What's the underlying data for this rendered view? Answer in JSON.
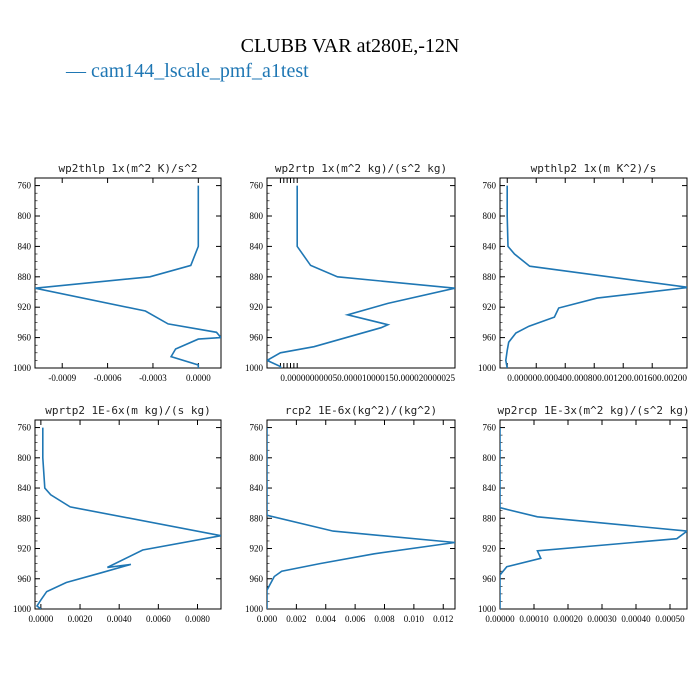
{
  "figure": {
    "title": "CLUBB VAR at280E,-12N",
    "legend": [
      {
        "label": "cam144_lscale_pmf_a1test",
        "color": "#1f77b4"
      }
    ],
    "line_color": "#1f77b4"
  },
  "chart_data": [
    {
      "type": "line",
      "title": "wp2thlp  1x(m^2 K)/s^2",
      "ylim": [
        1000,
        750
      ],
      "yticks": [
        "760",
        "800",
        "840",
        "880",
        "920",
        "960",
        "1000"
      ],
      "xlim": [
        -0.00108,
        0.00015
      ],
      "xticks": [
        "-0.0009",
        "-0.0006",
        "-0.0003",
        "0.0000"
      ],
      "series": [
        {
          "x": [
            0.0,
            0.0,
            0.0,
            -5e-05,
            -0.00032,
            -0.00108,
            -0.00035,
            -0.0002,
            0.00012,
            0.00015,
            0.0,
            -0.00015,
            -0.00018,
            0.0,
            0.0
          ],
          "y": [
            760,
            800,
            840,
            865,
            880,
            895,
            925,
            942,
            953,
            960,
            962,
            975,
            985,
            996,
            1000
          ]
        }
      ]
    },
    {
      "type": "line",
      "title": "wp2rtp  1x(m^2 kg)/(s^2 kg)",
      "ylim": [
        1000,
        750
      ],
      "yticks": [
        "760",
        "800",
        "840",
        "880",
        "920",
        "960",
        "1000"
      ],
      "xlim": [
        -2e-06,
        2.6e-05
      ],
      "xticks": [
        "0.0000000",
        "0.0000005",
        "0.0000010",
        "0.0000015",
        "0.0000020",
        "0.0000025"
      ],
      "tick_labels_overlap": "0.000000000050.000010000150.000020000025",
      "series": [
        {
          "x": [
            2.5e-06,
            2.5e-06,
            2.5e-06,
            4.5e-06,
            8.5e-06,
            2.6e-05,
            1.6e-05,
            1e-05,
            1.6e-05,
            1.5e-05,
            5e-06,
            0.0,
            -2e-06,
            0.0,
            0.0
          ],
          "y": [
            760,
            800,
            840,
            865,
            880,
            895,
            915,
            930,
            943,
            947,
            972,
            980,
            990,
            998,
            1000
          ]
        }
      ]
    },
    {
      "type": "line",
      "title": "wpthlp2  1x(m K^2)/s",
      "ylim": [
        1000,
        750
      ],
      "yticks": [
        "760",
        "800",
        "840",
        "880",
        "920",
        "960",
        "1000"
      ],
      "xlim": [
        -0.0001,
        0.00248
      ],
      "xticks": [
        "0.0000",
        "0.0004",
        "0.0008",
        "0.0012",
        "0.0016",
        "0.0020"
      ],
      "tick_labels_overlap": "0.000000.000400.000800.001200.001600.00200",
      "series": [
        {
          "x": [
            0.0,
            0.0,
            1e-05,
            0.0001,
            0.00031,
            0.0025,
            0.00124,
            0.00071,
            0.00065,
            0.0003,
            0.00012,
            2e-05,
            0.0,
            -2e-05,
            0.0
          ],
          "y": [
            760,
            800,
            840,
            850,
            866,
            894,
            908,
            921,
            933,
            945,
            954,
            966,
            977,
            990,
            1000
          ]
        }
      ]
    },
    {
      "type": "line",
      "title": "wprtp2  1E-6x(m kg)/(s kg)",
      "ylim": [
        1000,
        750
      ],
      "yticks": [
        "760",
        "800",
        "840",
        "880",
        "920",
        "960",
        "1000"
      ],
      "xlim": [
        -0.0003,
        0.0092
      ],
      "xticks": [
        "0.0000",
        "0.0020",
        "0.0040",
        "0.0060",
        "0.0080"
      ],
      "series": [
        {
          "x": [
            0.0001,
            0.0001,
            0.0002,
            0.0005,
            0.0015,
            0.0092,
            0.0052,
            0.0034,
            0.0046,
            0.0031,
            0.0013,
            0.0003,
            0.0,
            -0.0002,
            0.0
          ],
          "y": [
            760,
            800,
            840,
            849,
            865,
            903,
            922,
            945,
            941,
            952,
            965,
            977,
            988,
            996,
            1000
          ]
        }
      ]
    },
    {
      "type": "line",
      "title": "rcp2  1E-6x(kg^2)/(kg^2)",
      "ylim": [
        1000,
        750
      ],
      "yticks": [
        "760",
        "800",
        "840",
        "880",
        "920",
        "960",
        "1000"
      ],
      "xlim": [
        0.0,
        0.0128
      ],
      "xticks": [
        "0.000",
        "0.002",
        "0.004",
        "0.006",
        "0.008",
        "0.010",
        "0.012"
      ],
      "series": [
        {
          "x": [
            0.0,
            0.0,
            0.0,
            0.0,
            0.0045,
            0.0128,
            0.0073,
            0.0036,
            0.001,
            0.0005,
            0.0,
            0.0
          ],
          "y": [
            760,
            800,
            840,
            876,
            897,
            912,
            927,
            940,
            950,
            957,
            975,
            1000
          ]
        }
      ]
    },
    {
      "type": "line",
      "title": "wp2rcp  1E-3x(m^2 kg)/(s^2 kg)",
      "ylim": [
        1000,
        750
      ],
      "yticks": [
        "760",
        "800",
        "840",
        "880",
        "920",
        "960",
        "1000"
      ],
      "xlim": [
        0.0,
        0.00055
      ],
      "xticks": [
        "0.00000",
        "0.00010",
        "0.00020",
        "0.00030",
        "0.00040",
        "0.00050"
      ],
      "series": [
        {
          "x": [
            0.0,
            0.0,
            0.0,
            0.0,
            0.00011,
            0.00055,
            0.00052,
            0.00011,
            0.00012,
            2e-05,
            0.0,
            0.0
          ],
          "y": [
            760,
            800,
            840,
            866,
            878,
            897,
            907,
            923,
            933,
            944,
            955,
            1000
          ]
        }
      ]
    }
  ]
}
